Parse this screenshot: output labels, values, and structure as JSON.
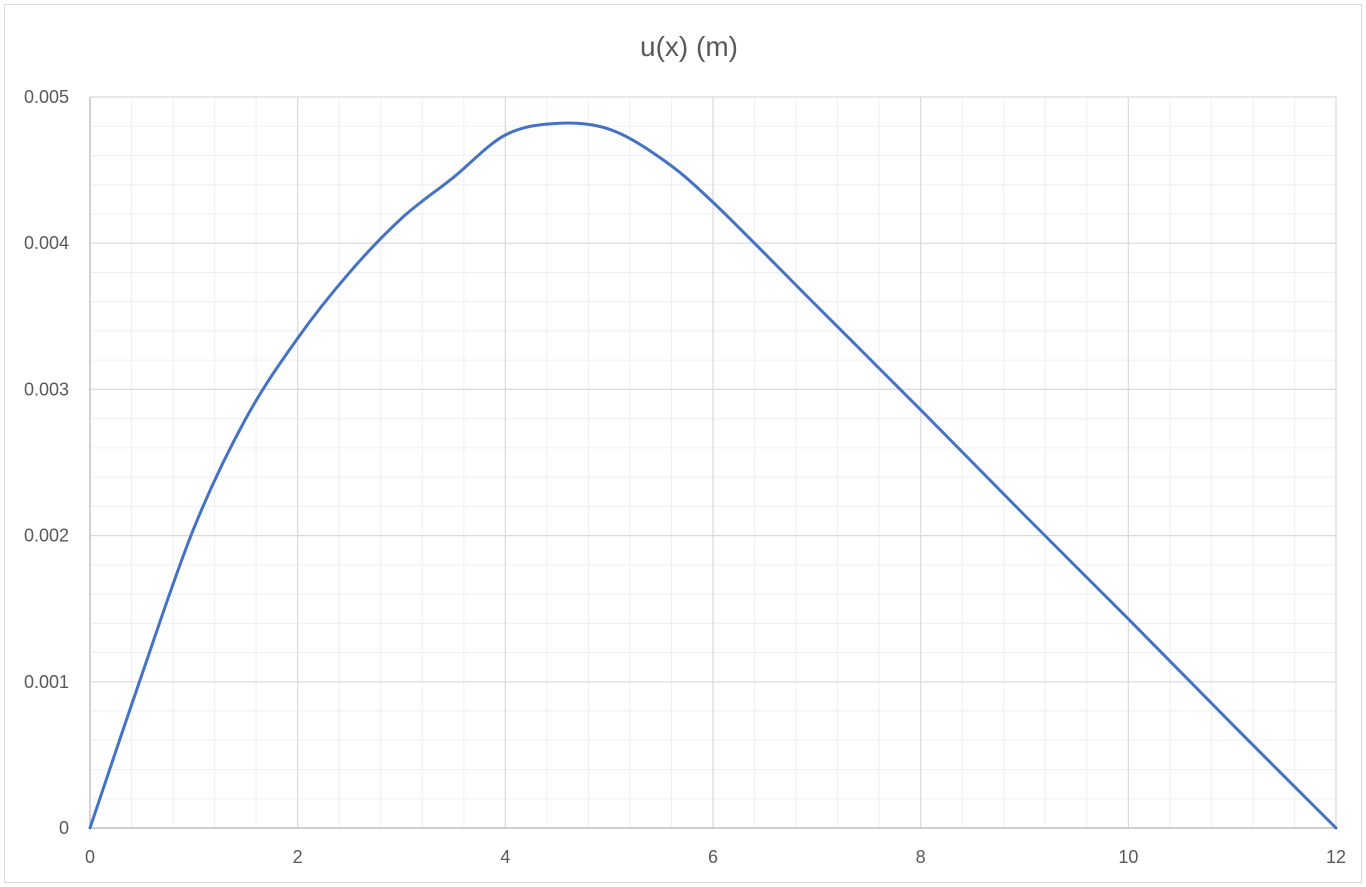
{
  "chart_data": {
    "type": "line",
    "title": "u(x) (m)",
    "xlabel": "",
    "ylabel": "",
    "xlim": [
      0,
      12
    ],
    "ylim": [
      0,
      0.005
    ],
    "x_ticks": [
      "0",
      "2",
      "4",
      "6",
      "8",
      "10",
      "12"
    ],
    "y_ticks": [
      "0",
      "0.001",
      "0.002",
      "0.003",
      "0.004",
      "0.005"
    ],
    "grid": true,
    "minor_grid": true,
    "legend": "none",
    "series": [
      {
        "color": "#4472C4",
        "x": [
          0,
          0.5,
          1,
          1.5,
          2,
          2.5,
          3,
          3.5,
          4,
          4.5,
          5,
          5.5,
          6,
          7,
          8,
          9,
          10,
          11,
          12
        ],
        "y": [
          0,
          0.00105,
          0.00205,
          0.0028,
          0.00335,
          0.0038,
          0.00417,
          0.00445,
          0.00474,
          0.00482,
          0.00478,
          0.00458,
          0.00428,
          0.00357,
          0.00286,
          0.00214,
          0.00143,
          0.00071,
          0
        ]
      }
    ]
  }
}
